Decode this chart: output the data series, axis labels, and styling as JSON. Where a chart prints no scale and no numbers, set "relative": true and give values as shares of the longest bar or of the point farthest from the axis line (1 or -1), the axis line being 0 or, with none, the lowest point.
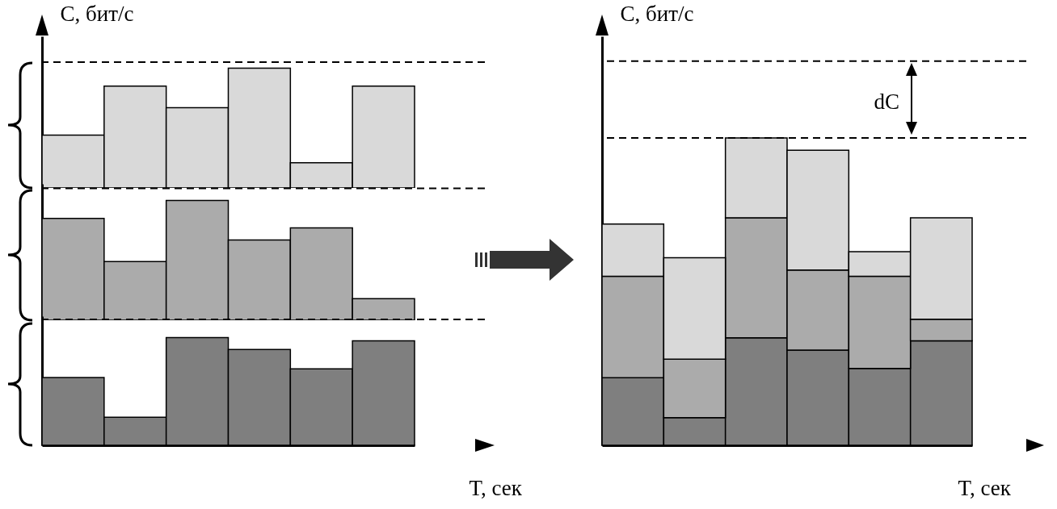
{
  "chart_data": [
    {
      "type": "bar",
      "ylabel": "C, бит/с",
      "categories": [
        null,
        null,
        null,
        null,
        null,
        null
      ],
      "values": [
        0.44,
        0.85,
        0.67,
        1,
        0.21,
        0.85
      ],
      "color": "#d9d9d9",
      "relative": true,
      "ref_lines": [
        {
          "axis": "y",
          "value": 1.05,
          "line_style": "dashed"
        }
      ]
    },
    {
      "type": "bar",
      "categories": [
        null,
        null,
        null,
        null,
        null,
        null
      ],
      "values": [
        0.85,
        0.49,
        1,
        0.67,
        0.77,
        0.18
      ],
      "color": "#ababab",
      "relative": true,
      "ref_lines": [
        {
          "axis": "y",
          "value": 1.1,
          "line_style": "dashed"
        }
      ]
    },
    {
      "type": "bar",
      "xlabel": "T, сек",
      "categories": [
        null,
        null,
        null,
        null,
        null,
        null
      ],
      "values": [
        0.63,
        0.26,
        1,
        0.89,
        0.71,
        0.97
      ],
      "color": "#7f7f7f",
      "relative": true,
      "ref_lines": [
        {
          "axis": "y",
          "value": 1.17,
          "line_style": "dashed"
        }
      ]
    },
    {
      "type": "bar",
      "stacked": true,
      "xlabel": "T, сек",
      "ylabel": "C, бит/с",
      "categories": [
        null,
        null,
        null,
        null,
        null,
        null
      ],
      "relative": true,
      "series": [
        {
          "color": "#7f7f7f",
          "values": [
            0.22,
            0.09,
            0.35,
            0.31,
            0.25,
            0.34
          ]
        },
        {
          "color": "#ababab",
          "values": [
            0.33,
            0.19,
            0.39,
            0.26,
            0.3,
            0.07
          ]
        },
        {
          "color": "#d9d9d9",
          "values": [
            0.17,
            0.33,
            0.26,
            0.39,
            0.08,
            0.33
          ]
        }
      ],
      "ref_lines": [
        {
          "axis": "y",
          "value": 1.0,
          "line_style": "dashed"
        },
        {
          "axis": "y",
          "value": 1.25,
          "line_style": "dashed"
        }
      ],
      "annotations": [
        "dC"
      ]
    }
  ]
}
